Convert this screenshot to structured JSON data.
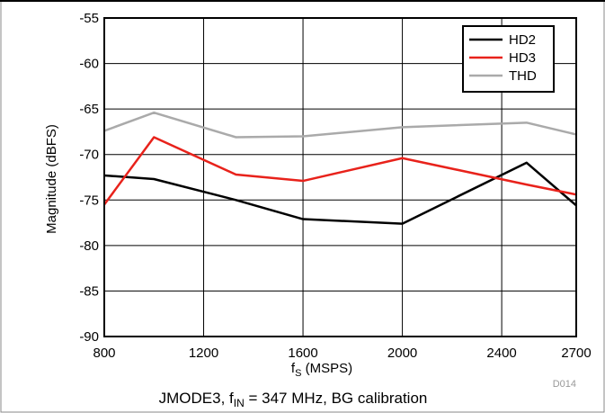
{
  "chart_data": {
    "type": "line",
    "xlabel_main": "f",
    "xlabel_sub": "S",
    "xlabel_rest": " (MSPS)",
    "ylabel": "Magnitude (dBFS)",
    "xlim": [
      800,
      2700
    ],
    "ylim": [
      -90,
      -55
    ],
    "x_ticks": [
      800,
      1200,
      1600,
      2000,
      2400,
      2700
    ],
    "y_ticks": [
      -90,
      -85,
      -80,
      -75,
      -70,
      -65,
      -60,
      -55
    ],
    "grid": true,
    "legend_position": "top-right",
    "series": [
      {
        "name": "HD2",
        "color": "#000000",
        "x": [
          800,
          1000,
          1330,
          1600,
          2000,
          2500,
          2700
        ],
        "y": [
          -72.3,
          -72.7,
          -75,
          -77.1,
          -77.6,
          -70.9,
          -75.6
        ]
      },
      {
        "name": "HD3",
        "color": "#e8221b",
        "x": [
          800,
          1000,
          1330,
          1600,
          2000,
          2500,
          2700
        ],
        "y": [
          -75.5,
          -68.1,
          -72.2,
          -72.9,
          -70.4,
          -73.3,
          -74.4
        ]
      },
      {
        "name": "THD",
        "color": "#aaaaaa",
        "x": [
          800,
          1000,
          1330,
          1600,
          2000,
          2500,
          2700
        ],
        "y": [
          -67.4,
          -65.4,
          -68.1,
          -68,
          -67,
          -66.5,
          -67.8
        ]
      }
    ],
    "figure_id": "D014",
    "caption_pre": "JMODE3, f",
    "caption_sub": "IN",
    "caption_post": " = 347 MHz, BG calibration"
  }
}
